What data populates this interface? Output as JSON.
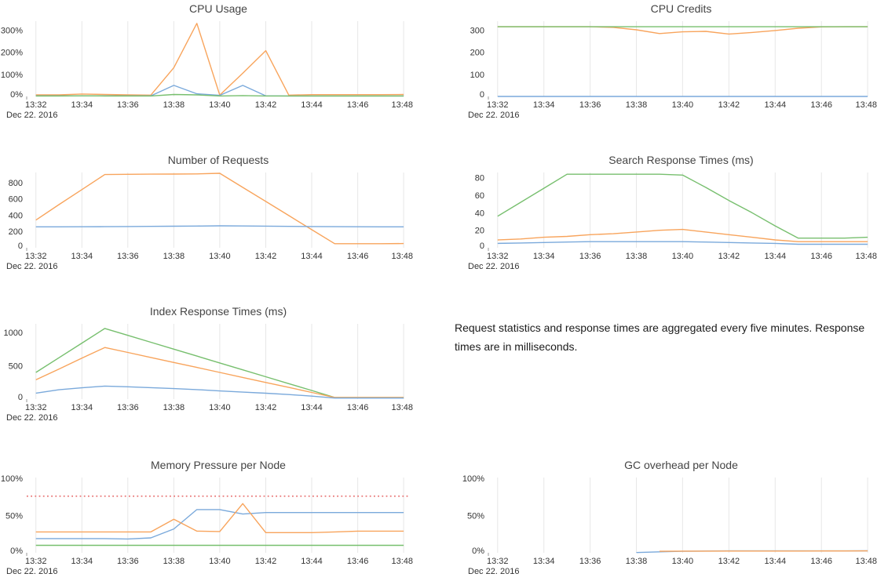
{
  "note": {
    "text": "Request statistics and response times are aggregated every five minutes. Response times are in milliseconds."
  },
  "colors": {
    "blue": "#7aa9db",
    "orange": "#f8a45c",
    "green": "#77bf6e",
    "red": "#ea7e7e",
    "grid": "#e7e7e7"
  },
  "x_axis": {
    "tick_labels": [
      "13:32",
      "13:34",
      "13:36",
      "13:38",
      "13:40",
      "13:42",
      "13:44",
      "13:46",
      "13:48"
    ],
    "date_label": "Dec 22. 2016"
  },
  "chart_data": [
    {
      "type": "line",
      "title": "CPU Usage",
      "ylim": [
        0,
        340
      ],
      "y_ticks": [
        {
          "value": 0,
          "label": "0%"
        },
        {
          "value": 100,
          "label": "100%"
        },
        {
          "value": 200,
          "label": "200%"
        },
        {
          "value": 300,
          "label": "300%"
        }
      ],
      "series": [
        {
          "name": "series-orange",
          "color_key": "orange",
          "values": [
            7,
            7,
            11,
            9,
            7,
            6,
            130,
            330,
            6,
            105,
            207,
            6,
            8,
            8,
            8,
            8,
            9
          ]
        },
        {
          "name": "series-blue",
          "color_key": "blue",
          "values": [
            3,
            3,
            3,
            3,
            3,
            3,
            50,
            12,
            5,
            50,
            3,
            2,
            2,
            2,
            2,
            2,
            2
          ]
        },
        {
          "name": "series-green",
          "color_key": "green",
          "values": [
            2,
            2,
            3,
            2,
            2,
            2,
            9,
            7,
            2,
            4,
            2,
            2,
            2,
            2,
            2,
            2,
            2
          ]
        }
      ]
    },
    {
      "type": "line",
      "title": "CPU Credits",
      "ylim": [
        0,
        340
      ],
      "y_ticks": [
        {
          "value": 0,
          "label": "0"
        },
        {
          "value": 100,
          "label": "100"
        },
        {
          "value": 200,
          "label": "200"
        },
        {
          "value": 300,
          "label": "300"
        }
      ],
      "series": [
        {
          "name": "series-orange",
          "color_key": "orange",
          "values": [
            315,
            315,
            315,
            315,
            315,
            312,
            301,
            284,
            292,
            294,
            282,
            289,
            298,
            308,
            314,
            315,
            315
          ]
        },
        {
          "name": "series-green",
          "color_key": "green",
          "values": [
            315,
            315,
            315,
            315,
            315,
            315,
            315,
            315,
            315,
            315,
            315,
            315,
            315,
            315,
            315,
            315,
            315
          ]
        },
        {
          "name": "series-blue",
          "color_key": "blue",
          "values": [
            0,
            0,
            0,
            0,
            0,
            0,
            0,
            0,
            0,
            0,
            0,
            0,
            0,
            0,
            0,
            0,
            0
          ]
        }
      ]
    },
    {
      "type": "line",
      "title": "Number of Requests",
      "ylim": [
        0,
        925
      ],
      "y_ticks": [
        {
          "value": 0,
          "label": "0"
        },
        {
          "value": 200,
          "label": "200"
        },
        {
          "value": 400,
          "label": "400"
        },
        {
          "value": 600,
          "label": "600"
        },
        {
          "value": 800,
          "label": "800"
        }
      ],
      "series": [
        {
          "name": "series-orange",
          "color_key": "orange",
          "values": [
            340,
            530,
            715,
            900,
            903,
            905,
            906,
            908,
            915,
            742,
            569,
            396,
            223,
            50,
            50,
            50,
            52
          ]
        },
        {
          "name": "series-blue",
          "color_key": "blue",
          "values": [
            257,
            257,
            258,
            259,
            261,
            263,
            265,
            267,
            270,
            268,
            266,
            263,
            261,
            259,
            258,
            257,
            257
          ]
        }
      ]
    },
    {
      "type": "line",
      "title": "Search Response Times (ms)",
      "ylim": [
        0,
        86
      ],
      "y_ticks": [
        {
          "value": 0,
          "label": "0"
        },
        {
          "value": 20,
          "label": "20"
        },
        {
          "value": 40,
          "label": "40"
        },
        {
          "value": 60,
          "label": "60"
        },
        {
          "value": 80,
          "label": "80"
        }
      ],
      "series": [
        {
          "name": "series-green",
          "color_key": "green",
          "values": [
            36,
            52,
            68,
            84,
            84,
            84,
            84,
            84,
            83,
            69,
            54,
            40,
            25,
            11,
            11,
            11,
            12
          ]
        },
        {
          "name": "series-orange",
          "color_key": "orange",
          "values": [
            9,
            10,
            12,
            13,
            15,
            16,
            18,
            20,
            21,
            18,
            15,
            12,
            9,
            7,
            7,
            7,
            7
          ]
        },
        {
          "name": "series-blue",
          "color_key": "blue",
          "values": [
            5,
            5.5,
            6,
            6.5,
            7,
            7,
            7,
            7,
            7,
            6.5,
            6,
            5.5,
            5,
            4,
            4,
            4,
            4
          ]
        }
      ]
    },
    {
      "type": "line",
      "title": "Index Response Times (ms)",
      "ylim": [
        0,
        1130
      ],
      "y_ticks": [
        {
          "value": 0,
          "label": "0"
        },
        {
          "value": 500,
          "label": "500"
        },
        {
          "value": 1000,
          "label": "1000"
        }
      ],
      "series": [
        {
          "name": "series-green",
          "color_key": "green",
          "values": [
            400,
            620,
            840,
            1060,
            957,
            853,
            750,
            646,
            543,
            439,
            336,
            232,
            129,
            25,
            25,
            25,
            25
          ]
        },
        {
          "name": "series-orange",
          "color_key": "orange",
          "values": [
            290,
            450,
            615,
            775,
            700,
            625,
            550,
            475,
            400,
            325,
            250,
            175,
            100,
            25,
            25,
            25,
            25
          ]
        },
        {
          "name": "series-blue",
          "color_key": "blue",
          "values": [
            90,
            140,
            170,
            195,
            185,
            172,
            158,
            143,
            122,
            105,
            88,
            68,
            45,
            15,
            15,
            15,
            15
          ]
        }
      ]
    },
    {
      "type": "line",
      "title": "Memory Pressure per Node",
      "ylim": [
        0,
        101
      ],
      "y_ticks": [
        {
          "value": 0,
          "label": "0%"
        },
        {
          "value": 50,
          "label": "50%"
        },
        {
          "value": 100,
          "label": "100%"
        }
      ],
      "threshold": {
        "value": 76,
        "color_key": "red",
        "style": "dotted"
      },
      "series": [
        {
          "name": "series-blue",
          "color_key": "blue",
          "values": [
            19,
            19,
            19,
            19,
            18.5,
            20,
            32,
            58,
            58,
            52,
            54,
            54,
            54,
            54,
            54,
            54,
            54
          ]
        },
        {
          "name": "series-orange",
          "color_key": "orange",
          "values": [
            28,
            28,
            28,
            28,
            28,
            28,
            45,
            29,
            28.5,
            66,
            27,
            27,
            27,
            28,
            29,
            29,
            29
          ]
        },
        {
          "name": "series-green",
          "color_key": "green",
          "values": [
            10,
            10,
            10,
            10,
            10,
            10,
            10,
            10,
            10,
            10,
            10,
            10,
            10,
            10,
            10,
            10,
            10
          ]
        }
      ]
    },
    {
      "type": "line",
      "title": "GC overhead per Node",
      "ylim": [
        0,
        101
      ],
      "y_ticks": [
        {
          "value": 0,
          "label": "0%"
        },
        {
          "value": 50,
          "label": "50%"
        },
        {
          "value": 100,
          "label": "100%"
        }
      ],
      "series": [
        {
          "name": "series-blue",
          "color_key": "blue",
          "values": [
            null,
            null,
            null,
            null,
            null,
            null,
            0.3,
            1.3,
            2,
            2.3,
            2.5,
            2.5,
            2.5,
            2.5,
            2.5,
            2.5,
            2.6
          ]
        },
        {
          "name": "series-orange",
          "color_key": "orange",
          "values": [
            null,
            null,
            null,
            null,
            null,
            null,
            null,
            2,
            2.2,
            2.2,
            2.3,
            2.3,
            2.3,
            2.3,
            2.4,
            2.4,
            2.5
          ]
        }
      ]
    }
  ]
}
